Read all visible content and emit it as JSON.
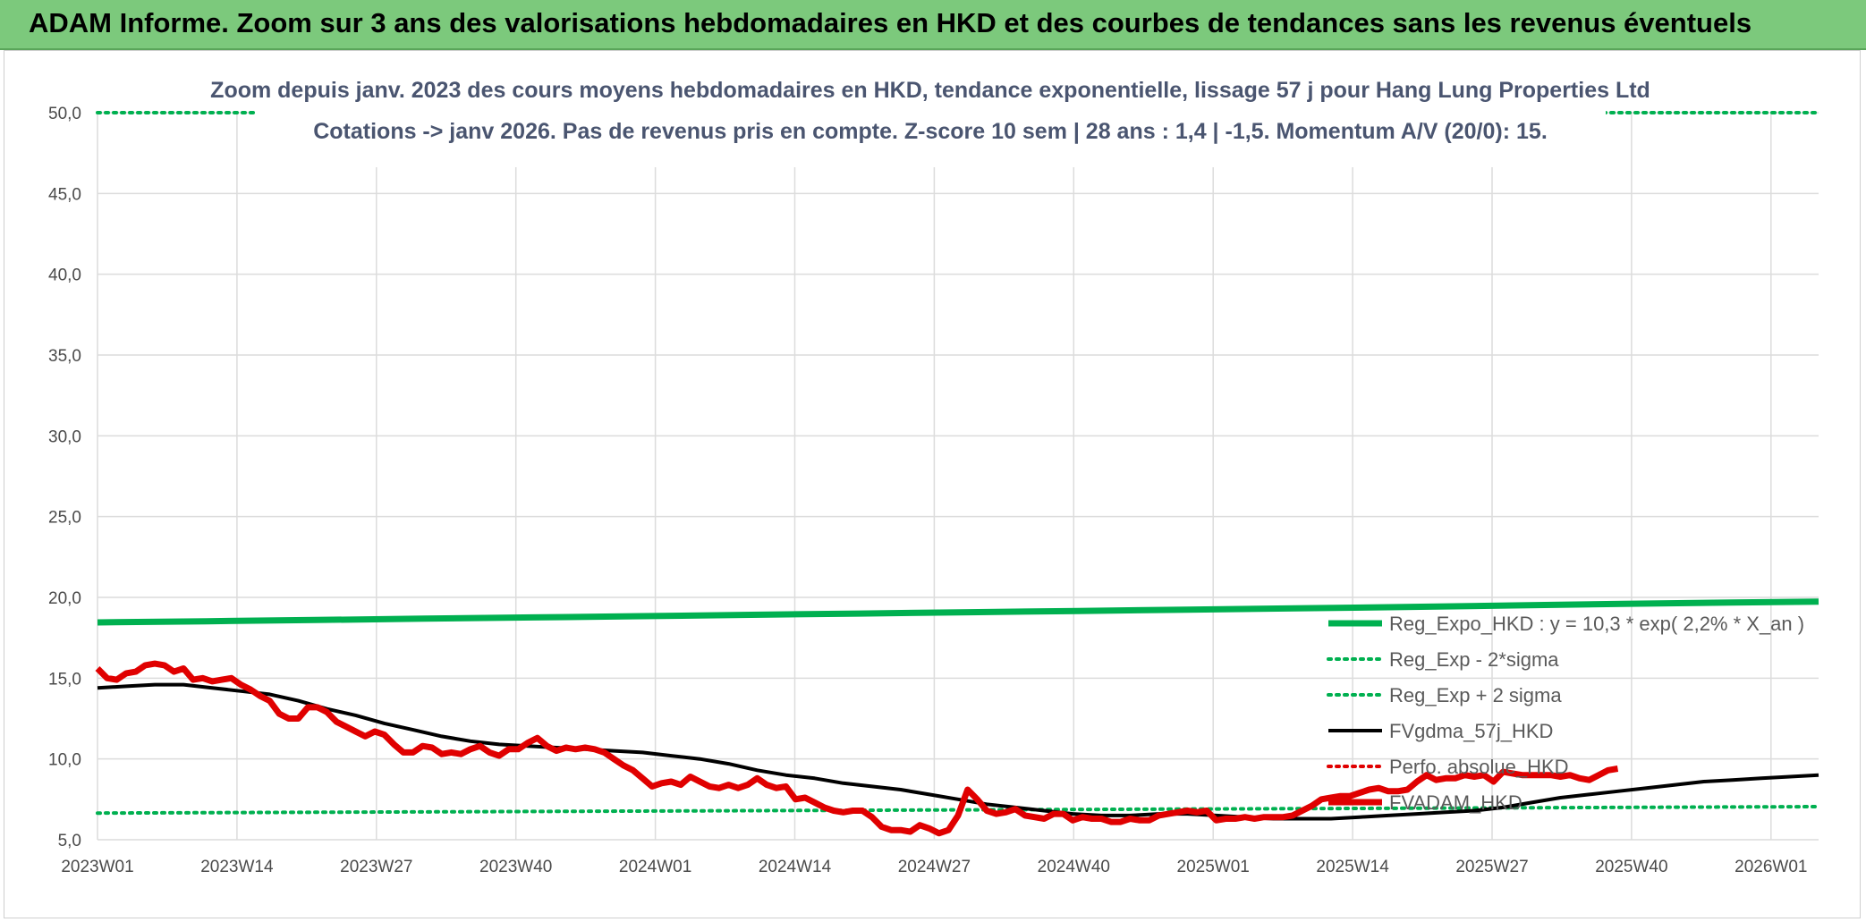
{
  "header": {
    "title": "ADAM Informe. Zoom sur 3 ans des valorisations hebdomadaires en HKD et des courbes de tendances sans les revenus éventuels"
  },
  "chart_data": {
    "type": "line",
    "subtitle_line1": "Zoom depuis janv. 2023 des cours moyens hebdomadaires en HKD, tendance exponentielle, lissage 57 j pour Hang Lung Properties Ltd",
    "subtitle_line2": "Cotations -> janv 2026. Pas de revenus pris en compte. Z-score 10 sem | 28 ans : 1,4 | -1,5. Momentum A/V (20/0): 15.",
    "ylim": [
      5,
      50
    ],
    "yticks": [
      "5,0",
      "10,0",
      "15,0",
      "20,0",
      "25,0",
      "30,0",
      "35,0",
      "40,0",
      "45,0",
      "50,0"
    ],
    "xticks": [
      "2023W01",
      "2023W14",
      "2023W27",
      "2023W40",
      "2024W01",
      "2024W14",
      "2024W27",
      "2024W40",
      "2025W01",
      "2025W14",
      "2025W27",
      "2025W40",
      "2026W01"
    ],
    "grid": true,
    "legend_position": "right",
    "colors": {
      "green": "#00b050",
      "black": "#000000",
      "red": "#e00000",
      "grid": "#dcdcdc"
    },
    "series": [
      {
        "name": "Reg_Expo_HKD : y = 10,3 * exp( 2,2% *  X_an )",
        "style": "solid-thick",
        "color": "#00b050",
        "points": [
          [
            0,
            18.45
          ],
          [
            10,
            18.52
          ],
          [
            20,
            18.6
          ],
          [
            30,
            18.68
          ],
          [
            40,
            18.76
          ],
          [
            50,
            18.84
          ],
          [
            60,
            18.92
          ],
          [
            70,
            19.0
          ],
          [
            80,
            19.08
          ],
          [
            90,
            19.16
          ],
          [
            100,
            19.24
          ],
          [
            110,
            19.32
          ],
          [
            120,
            19.4
          ],
          [
            130,
            19.5
          ],
          [
            140,
            19.6
          ],
          [
            150,
            19.68
          ],
          [
            158,
            19.74
          ]
        ]
      },
      {
        "name": "Reg_Exp - 2*sigma",
        "style": "dotted",
        "color": "#00b050",
        "points": [
          [
            0,
            6.65
          ],
          [
            40,
            6.75
          ],
          [
            80,
            6.85
          ],
          [
            120,
            6.95
          ],
          [
            158,
            7.05
          ]
        ]
      },
      {
        "name": "Reg_Exp + 2 sigma",
        "style": "dotted",
        "color": "#00b050",
        "points": [
          [
            0,
            50
          ],
          [
            158,
            50
          ]
        ]
      },
      {
        "name": "FVgdma_57j_HKD",
        "style": "solid",
        "color": "#000000",
        "points": [
          [
            0,
            14.4
          ],
          [
            3,
            14.5
          ],
          [
            6,
            14.6
          ],
          [
            9,
            14.6
          ],
          [
            12,
            14.4
          ],
          [
            15,
            14.2
          ],
          [
            18,
            14.0
          ],
          [
            21,
            13.6
          ],
          [
            24,
            13.1
          ],
          [
            27,
            12.7
          ],
          [
            30,
            12.2
          ],
          [
            33,
            11.8
          ],
          [
            36,
            11.4
          ],
          [
            39,
            11.1
          ],
          [
            42,
            10.9
          ],
          [
            45,
            10.8
          ],
          [
            48,
            10.7
          ],
          [
            51,
            10.6
          ],
          [
            54,
            10.5
          ],
          [
            57,
            10.4
          ],
          [
            60,
            10.2
          ],
          [
            63,
            10.0
          ],
          [
            66,
            9.7
          ],
          [
            69,
            9.3
          ],
          [
            72,
            9.0
          ],
          [
            75,
            8.8
          ],
          [
            78,
            8.5
          ],
          [
            81,
            8.3
          ],
          [
            84,
            8.1
          ],
          [
            87,
            7.8
          ],
          [
            90,
            7.5
          ],
          [
            93,
            7.2
          ],
          [
            96,
            7.0
          ],
          [
            99,
            6.8
          ],
          [
            102,
            6.6
          ],
          [
            105,
            6.5
          ],
          [
            108,
            6.5
          ],
          [
            111,
            6.6
          ],
          [
            114,
            6.6
          ],
          [
            117,
            6.5
          ],
          [
            120,
            6.4
          ],
          [
            123,
            6.3
          ],
          [
            126,
            6.3
          ],
          [
            129,
            6.3
          ],
          [
            132,
            6.4
          ],
          [
            135,
            6.5
          ],
          [
            138,
            6.6
          ],
          [
            141,
            6.7
          ],
          [
            144,
            6.8
          ],
          [
            147,
            7.0
          ],
          [
            150,
            7.3
          ],
          [
            153,
            7.6
          ],
          [
            156,
            7.8
          ],
          [
            159,
            8.0
          ],
          [
            162,
            8.2
          ],
          [
            165,
            8.4
          ],
          [
            168,
            8.6
          ],
          [
            171,
            8.7
          ],
          [
            174,
            8.8
          ],
          [
            177,
            8.9
          ],
          [
            180,
            9.0
          ]
        ]
      },
      {
        "name": "Perfo. absolue_HKD",
        "style": "dotted",
        "color": "#e00000",
        "points": []
      },
      {
        "name": "FVADAM_HKD",
        "style": "solid-thick",
        "color": "#e00000",
        "points": [
          [
            0,
            15.6
          ],
          [
            1,
            15.0
          ],
          [
            2,
            14.9
          ],
          [
            3,
            15.3
          ],
          [
            4,
            15.4
          ],
          [
            5,
            15.8
          ],
          [
            6,
            15.9
          ],
          [
            7,
            15.8
          ],
          [
            8,
            15.4
          ],
          [
            9,
            15.6
          ],
          [
            10,
            14.9
          ],
          [
            11,
            15.0
          ],
          [
            12,
            14.8
          ],
          [
            13,
            14.9
          ],
          [
            14,
            15.0
          ],
          [
            15,
            14.6
          ],
          [
            16,
            14.3
          ],
          [
            17,
            13.9
          ],
          [
            18,
            13.6
          ],
          [
            19,
            12.8
          ],
          [
            20,
            12.5
          ],
          [
            21,
            12.5
          ],
          [
            22,
            13.2
          ],
          [
            23,
            13.2
          ],
          [
            24,
            12.9
          ],
          [
            25,
            12.3
          ],
          [
            26,
            12.0
          ],
          [
            27,
            11.7
          ],
          [
            28,
            11.4
          ],
          [
            29,
            11.7
          ],
          [
            30,
            11.5
          ],
          [
            31,
            10.9
          ],
          [
            32,
            10.4
          ],
          [
            33,
            10.4
          ],
          [
            34,
            10.8
          ],
          [
            35,
            10.7
          ],
          [
            36,
            10.3
          ],
          [
            37,
            10.4
          ],
          [
            38,
            10.3
          ],
          [
            39,
            10.6
          ],
          [
            40,
            10.8
          ],
          [
            41,
            10.4
          ],
          [
            42,
            10.2
          ],
          [
            43,
            10.6
          ],
          [
            44,
            10.6
          ],
          [
            45,
            11.0
          ],
          [
            46,
            11.3
          ],
          [
            47,
            10.8
          ],
          [
            48,
            10.5
          ],
          [
            49,
            10.7
          ],
          [
            50,
            10.6
          ],
          [
            51,
            10.7
          ],
          [
            52,
            10.6
          ],
          [
            53,
            10.4
          ],
          [
            54,
            10.0
          ],
          [
            55,
            9.6
          ],
          [
            56,
            9.3
          ],
          [
            57,
            8.8
          ],
          [
            58,
            8.3
          ],
          [
            59,
            8.5
          ],
          [
            60,
            8.6
          ],
          [
            61,
            8.4
          ],
          [
            62,
            8.9
          ],
          [
            63,
            8.6
          ],
          [
            64,
            8.3
          ],
          [
            65,
            8.2
          ],
          [
            66,
            8.4
          ],
          [
            67,
            8.2
          ],
          [
            68,
            8.4
          ],
          [
            69,
            8.8
          ],
          [
            70,
            8.4
          ],
          [
            71,
            8.2
          ],
          [
            72,
            8.3
          ],
          [
            73,
            7.5
          ],
          [
            74,
            7.6
          ],
          [
            75,
            7.3
          ],
          [
            76,
            7.0
          ],
          [
            77,
            6.8
          ],
          [
            78,
            6.7
          ],
          [
            79,
            6.8
          ],
          [
            80,
            6.8
          ],
          [
            81,
            6.4
          ],
          [
            82,
            5.8
          ],
          [
            83,
            5.6
          ],
          [
            84,
            5.6
          ],
          [
            85,
            5.5
          ],
          [
            86,
            5.9
          ],
          [
            87,
            5.7
          ],
          [
            88,
            5.4
          ],
          [
            89,
            5.6
          ],
          [
            90,
            6.5
          ],
          [
            91,
            8.1
          ],
          [
            92,
            7.5
          ],
          [
            93,
            6.8
          ],
          [
            94,
            6.6
          ],
          [
            95,
            6.7
          ],
          [
            96,
            6.9
          ],
          [
            97,
            6.5
          ],
          [
            98,
            6.4
          ],
          [
            99,
            6.3
          ],
          [
            100,
            6.6
          ],
          [
            101,
            6.6
          ],
          [
            102,
            6.2
          ],
          [
            103,
            6.4
          ],
          [
            104,
            6.3
          ],
          [
            105,
            6.3
          ],
          [
            106,
            6.1
          ],
          [
            107,
            6.1
          ],
          [
            108,
            6.3
          ],
          [
            109,
            6.2
          ],
          [
            110,
            6.2
          ],
          [
            111,
            6.5
          ],
          [
            112,
            6.6
          ],
          [
            113,
            6.7
          ],
          [
            114,
            6.8
          ],
          [
            115,
            6.7
          ],
          [
            116,
            6.8
          ],
          [
            117,
            6.2
          ],
          [
            118,
            6.3
          ],
          [
            119,
            6.3
          ],
          [
            120,
            6.4
          ],
          [
            121,
            6.3
          ],
          [
            122,
            6.4
          ],
          [
            123,
            6.4
          ],
          [
            124,
            6.4
          ],
          [
            125,
            6.5
          ],
          [
            126,
            6.8
          ],
          [
            127,
            7.1
          ],
          [
            128,
            7.5
          ],
          [
            129,
            7.6
          ],
          [
            130,
            7.7
          ],
          [
            131,
            7.7
          ],
          [
            132,
            7.9
          ],
          [
            133,
            8.1
          ],
          [
            134,
            8.2
          ],
          [
            135,
            8.0
          ],
          [
            136,
            8.0
          ],
          [
            137,
            8.1
          ],
          [
            138,
            8.6
          ],
          [
            139,
            9.0
          ],
          [
            140,
            8.7
          ],
          [
            141,
            8.8
          ],
          [
            142,
            8.8
          ],
          [
            143,
            9.0
          ],
          [
            144,
            8.9
          ],
          [
            145,
            9.0
          ],
          [
            146,
            8.6
          ],
          [
            147,
            9.2
          ],
          [
            148,
            9.1
          ],
          [
            149,
            9.0
          ],
          [
            150,
            9.0
          ],
          [
            151,
            9.0
          ],
          [
            152,
            9.0
          ],
          [
            153,
            8.9
          ],
          [
            154,
            9.0
          ],
          [
            155,
            8.8
          ],
          [
            156,
            8.7
          ],
          [
            157,
            9.0
          ],
          [
            158,
            9.3
          ],
          [
            159,
            9.4
          ]
        ]
      }
    ]
  }
}
